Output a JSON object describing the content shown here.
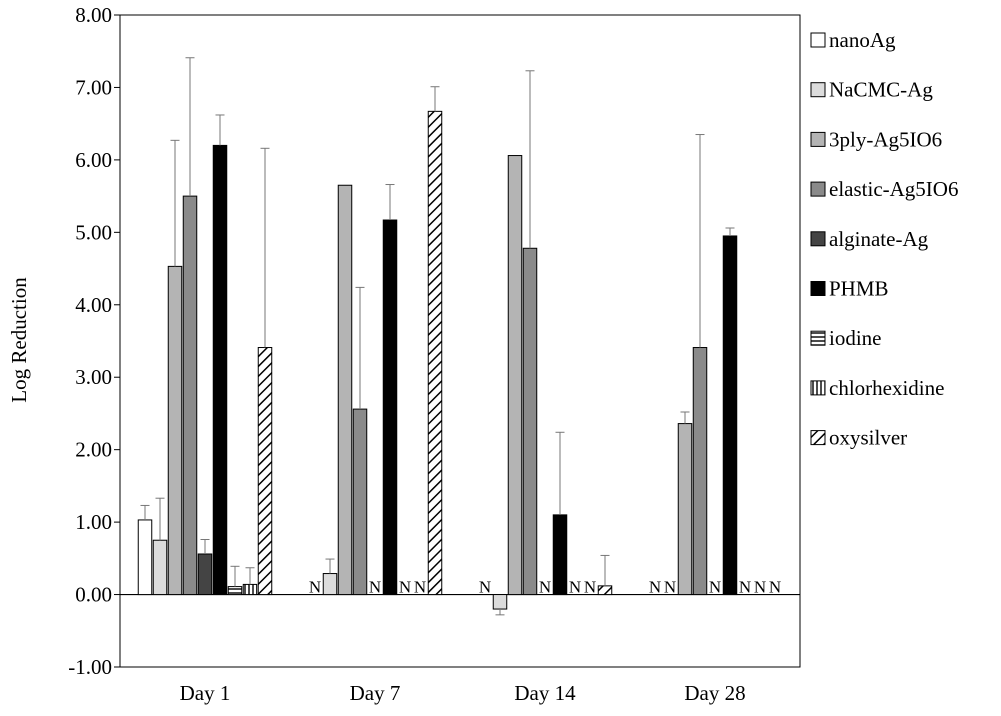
{
  "chart_data": {
    "type": "bar",
    "title": "",
    "xlabel": "",
    "ylabel": "Log Reduction",
    "ylim": [
      -1.0,
      8.0
    ],
    "y_ticks": [
      "8.00",
      "7.00",
      "6.00",
      "5.00",
      "4.00",
      "3.00",
      "2.00",
      "1.00",
      "0.00",
      "-1.00"
    ],
    "y_tick_values": [
      8,
      7,
      6,
      5,
      4,
      3,
      2,
      1,
      0,
      -1
    ],
    "categories": [
      "Day 1",
      "Day 7",
      "Day 14",
      "Day 28"
    ],
    "na_marker": "N",
    "legend_position": "right",
    "series": [
      {
        "name": "nanoAg",
        "fill": "#ffffff",
        "pattern": "none",
        "values": [
          1.03,
          null,
          null,
          null
        ],
        "errors": [
          0.2,
          null,
          null,
          null
        ]
      },
      {
        "name": "NaCMC-Ag",
        "fill": "#dcdcdc",
        "pattern": "none",
        "values": [
          0.75,
          0.29,
          -0.2,
          null
        ],
        "errors": [
          0.58,
          0.2,
          0.08,
          null
        ]
      },
      {
        "name": "3ply-Ag5IO6",
        "fill": "#b4b4b4",
        "pattern": "none",
        "values": [
          4.53,
          5.65,
          6.06,
          2.36
        ],
        "errors": [
          1.74,
          null,
          null,
          0.16
        ]
      },
      {
        "name": "elastic-Ag5IO6",
        "fill": "#8a8a8a",
        "pattern": "none",
        "values": [
          5.5,
          2.56,
          4.78,
          3.41
        ],
        "errors": [
          1.91,
          1.68,
          2.45,
          2.94
        ]
      },
      {
        "name": "alginate-Ag",
        "fill": "#444444",
        "pattern": "none",
        "values": [
          0.56,
          null,
          null,
          null
        ],
        "errors": [
          0.2,
          null,
          null,
          null
        ]
      },
      {
        "name": "PHMB",
        "fill": "#000000",
        "pattern": "none",
        "values": [
          6.2,
          5.17,
          1.1,
          4.95
        ],
        "errors": [
          0.42,
          0.49,
          1.14,
          0.11
        ]
      },
      {
        "name": "iodine",
        "fill": "#ffffff",
        "pattern": "horizontal",
        "values": [
          0.11,
          null,
          null,
          null
        ],
        "errors": [
          0.28,
          null,
          null,
          null
        ]
      },
      {
        "name": "chlorhexidine",
        "fill": "#ffffff",
        "pattern": "vertical",
        "values": [
          0.14,
          null,
          null,
          null
        ],
        "errors": [
          0.23,
          null,
          null,
          null
        ]
      },
      {
        "name": "oxysilver",
        "fill": "#ffffff",
        "pattern": "diagonal",
        "values": [
          3.41,
          6.67,
          0.12,
          null
        ],
        "errors": [
          2.75,
          0.34,
          0.42,
          null
        ]
      }
    ]
  }
}
